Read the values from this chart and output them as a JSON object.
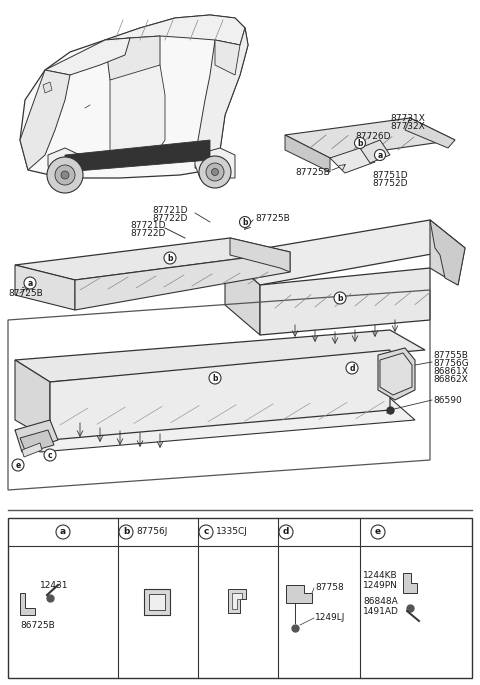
{
  "bg_color": "#ffffff",
  "text_color": "#1a1a1a",
  "line_color": "#333333",
  "fill_light": "#f0f0f0",
  "fill_mid": "#e0e0e0",
  "fill_dark": "#c8c8c8",
  "figsize": [
    4.8,
    6.85
  ],
  "dpi": 100,
  "labels": {
    "top_right1": "87731X",
    "top_right2": "87732X",
    "top_right3": "87726D",
    "top_right4": "87725B",
    "top_right5": "87751D",
    "top_right6": "87752D",
    "upper_left1": "87721D",
    "upper_left2": "87722D",
    "upper_left3": "87725B",
    "right_r1": "87755B",
    "right_r2": "87756G",
    "right_r3": "86861X",
    "right_r4": "86862X",
    "right_r5": "86590",
    "leg_a1": "12431",
    "leg_a2": "86725B",
    "leg_b1": "87756J",
    "leg_c1": "1335CJ",
    "leg_d1": "87758",
    "leg_d2": "1249LJ",
    "leg_e1": "1244KB",
    "leg_e2": "1249PN",
    "leg_e3": "86848A",
    "leg_e4": "1491AD"
  }
}
